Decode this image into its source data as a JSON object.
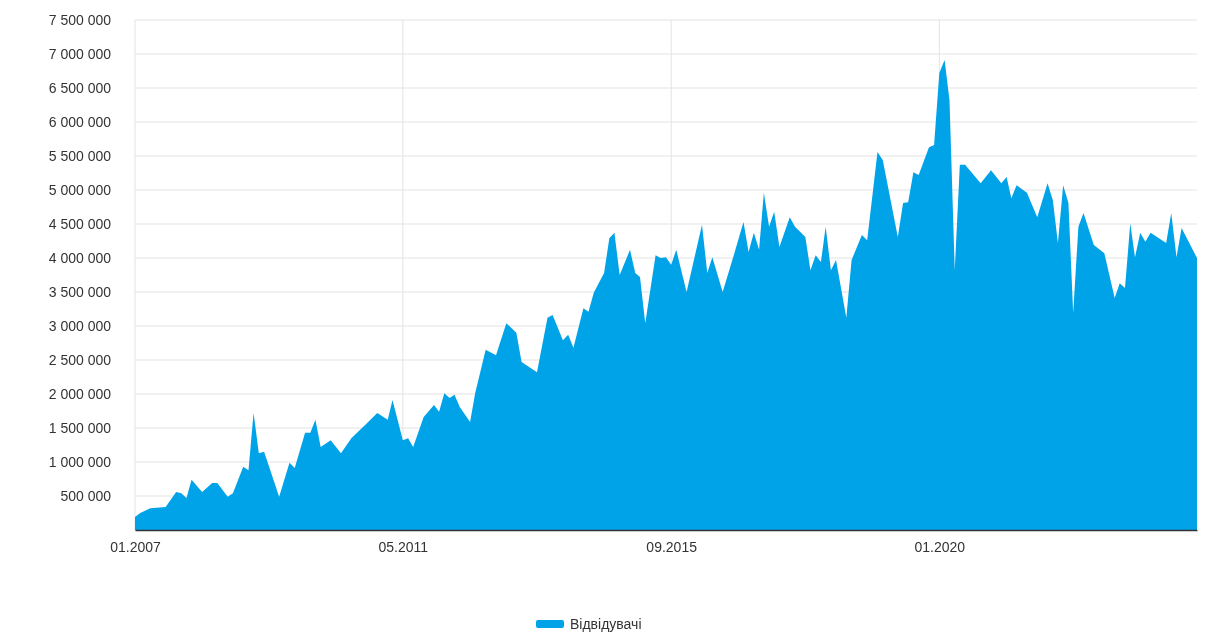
{
  "chart_data": {
    "type": "area",
    "x": [
      "2007-01",
      "2007-02",
      "2007-04",
      "2007-07",
      "2007-09",
      "2007-10",
      "2007-11",
      "2007-12",
      "2008-02",
      "2008-04",
      "2008-05",
      "2008-07",
      "2008-08",
      "2008-10",
      "2008-11",
      "2008-12",
      "2009-01",
      "2009-02",
      "2009-05",
      "2009-07",
      "2009-08",
      "2009-10",
      "2009-11",
      "2009-12",
      "2010-01",
      "2010-03",
      "2010-05",
      "2010-07",
      "2010-10",
      "2010-12",
      "2011-02",
      "2011-03",
      "2011-05",
      "2011-06",
      "2011-07",
      "2011-09",
      "2011-11",
      "2011-12",
      "2012-01",
      "2012-02",
      "2012-03",
      "2012-04",
      "2012-06",
      "2012-07",
      "2012-09",
      "2012-11",
      "2013-01",
      "2013-03",
      "2013-04",
      "2013-07",
      "2013-09",
      "2013-10",
      "2013-12",
      "2014-01",
      "2014-02",
      "2014-04",
      "2014-05",
      "2014-06",
      "2014-08",
      "2014-09",
      "2014-10",
      "2014-11",
      "2015-01",
      "2015-02",
      "2015-03",
      "2015-04",
      "2015-06",
      "2015-07",
      "2015-08",
      "2015-09",
      "2015-10",
      "2015-12",
      "2016-03",
      "2016-04",
      "2016-05",
      "2016-07",
      "2016-09",
      "2016-11",
      "2016-12",
      "2017-01",
      "2017-02",
      "2017-03",
      "2017-04",
      "2017-05",
      "2017-06",
      "2017-08",
      "2017-09",
      "2017-11",
      "2017-12",
      "2018-01",
      "2018-02",
      "2018-03",
      "2018-04",
      "2018-05",
      "2018-07",
      "2018-08",
      "2018-10",
      "2018-11",
      "2019-01",
      "2019-02",
      "2019-05",
      "2019-06",
      "2019-07",
      "2019-08",
      "2019-09",
      "2019-11",
      "2019-12",
      "2020-01",
      "2020-02",
      "2020-03",
      "2020-04",
      "2020-05",
      "2020-06",
      "2020-09",
      "2020-11",
      "2021-01",
      "2021-02",
      "2021-03",
      "2021-04",
      "2021-06",
      "2021-08",
      "2021-10",
      "2021-11",
      "2021-12",
      "2022-01",
      "2022-02",
      "2022-03",
      "2022-04",
      "2022-05",
      "2022-07",
      "2022-09",
      "2022-11",
      "2022-12",
      "2023-01",
      "2023-02",
      "2023-03",
      "2023-04",
      "2023-05",
      "2023-06",
      "2023-09",
      "2023-10",
      "2023-11",
      "2023-12",
      "2024-03"
    ],
    "series": [
      {
        "name": "Відвідувачі",
        "color": "#00a2e8",
        "values": [
          190000,
          250000,
          320000,
          340000,
          560000,
          540000,
          470000,
          740000,
          560000,
          690000,
          690000,
          490000,
          540000,
          930000,
          880000,
          1720000,
          1130000,
          1150000,
          490000,
          990000,
          910000,
          1430000,
          1430000,
          1620000,
          1220000,
          1320000,
          1130000,
          1350000,
          1570000,
          1720000,
          1620000,
          1910000,
          1320000,
          1350000,
          1220000,
          1660000,
          1840000,
          1740000,
          2010000,
          1940000,
          1990000,
          1810000,
          1590000,
          2010000,
          2650000,
          2570000,
          3040000,
          2900000,
          2470000,
          2320000,
          3120000,
          3160000,
          2790000,
          2870000,
          2680000,
          3260000,
          3210000,
          3490000,
          3780000,
          4290000,
          4370000,
          3750000,
          4120000,
          3780000,
          3720000,
          3040000,
          4040000,
          4000000,
          4010000,
          3900000,
          4120000,
          3500000,
          4490000,
          3780000,
          4010000,
          3500000,
          4010000,
          4530000,
          4090000,
          4370000,
          4120000,
          4960000,
          4460000,
          4680000,
          4160000,
          4600000,
          4460000,
          4310000,
          3820000,
          4040000,
          3940000,
          4460000,
          3820000,
          3970000,
          3120000,
          3970000,
          4340000,
          4260000,
          5560000,
          5440000,
          4310000,
          4810000,
          4820000,
          5260000,
          5220000,
          5630000,
          5660000,
          6720000,
          6910000,
          6320000,
          3820000,
          5370000,
          5370000,
          5100000,
          5290000,
          5100000,
          5190000,
          4880000,
          5070000,
          4960000,
          4600000,
          5100000,
          4850000,
          4220000,
          5070000,
          4810000,
          3190000,
          4460000,
          4660000,
          4190000,
          4070000,
          3410000,
          3630000,
          3560000,
          4510000,
          4010000,
          4370000,
          4240000,
          4370000,
          4220000,
          4660000,
          4010000,
          4440000,
          4000000
        ]
      }
    ],
    "xlim": [
      "2007-01",
      "2024-03"
    ],
    "xticks": [
      {
        "value": "2007-01",
        "label": "01.2007"
      },
      {
        "value": "2011-05",
        "label": "05.2011"
      },
      {
        "value": "2015-09",
        "label": "09.2015"
      },
      {
        "value": "2020-01",
        "label": "01.2020"
      }
    ],
    "ylim": [
      0,
      7500000
    ],
    "yticks": [
      {
        "value": 0,
        "label": null
      },
      {
        "value": 500000,
        "label": "500 000"
      },
      {
        "value": 1000000,
        "label": "1 000 000"
      },
      {
        "value": 1500000,
        "label": "1 500 000"
      },
      {
        "value": 2000000,
        "label": "2 000 000"
      },
      {
        "value": 2500000,
        "label": "2 500 000"
      },
      {
        "value": 3000000,
        "label": "3 000 000"
      },
      {
        "value": 3500000,
        "label": "3 500 000"
      },
      {
        "value": 4000000,
        "label": "4 000 000"
      },
      {
        "value": 4500000,
        "label": "4 500 000"
      },
      {
        "value": 5000000,
        "label": "5 000 000"
      },
      {
        "value": 5500000,
        "label": "5 500 000"
      },
      {
        "value": 6000000,
        "label": "6 000 000"
      },
      {
        "value": 6500000,
        "label": "6 500 000"
      },
      {
        "value": 7000000,
        "label": "7 000 000"
      },
      {
        "value": 7500000,
        "label": "7 500 000"
      }
    ],
    "grid": true,
    "legend": "bottom"
  }
}
